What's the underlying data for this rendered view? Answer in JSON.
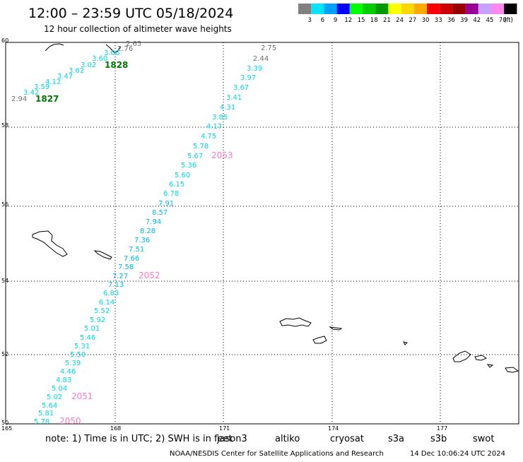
{
  "header": {
    "title": "12:00 – 23:59 UTC 05/18/2024",
    "subtitle": "12 hour collection of altimeter wave heights"
  },
  "legend": {
    "unit": "(ft)",
    "bins": [
      {
        "label": "3",
        "color": "#808080"
      },
      {
        "label": "6",
        "color": "#00e5ff"
      },
      {
        "label": "9",
        "color": "#00a0ff"
      },
      {
        "label": "12",
        "color": "#0000ff"
      },
      {
        "label": "15",
        "color": "#00ff00"
      },
      {
        "label": "18",
        "color": "#00cc00"
      },
      {
        "label": "21",
        "color": "#009900"
      },
      {
        "label": "24",
        "color": "#ffff00"
      },
      {
        "label": "27",
        "color": "#ffd700"
      },
      {
        "label": "30",
        "color": "#ffaa00"
      },
      {
        "label": "33",
        "color": "#ff0000"
      },
      {
        "label": "36",
        "color": "#cc0000"
      },
      {
        "label": "39",
        "color": "#990000"
      },
      {
        "label": "42",
        "color": "#990099"
      },
      {
        "label": "45",
        "color": "#c8a0ff"
      },
      {
        "label": "70",
        "color": "#ff88ee"
      },
      {
        "label": "",
        "color": "#000000"
      }
    ]
  },
  "axes": {
    "lat_labels": [
      "60",
      "58",
      "56",
      "54",
      "52",
      "50"
    ],
    "lon_labels": [
      "165",
      "168",
      "171",
      "174",
      "177"
    ]
  },
  "labels": [
    {
      "text": "2.76",
      "color": "#707070"
    },
    {
      "text": "2.65",
      "color": "#707070"
    },
    {
      "text": "3.06",
      "color": "#00d8e8"
    },
    {
      "text": "3.60",
      "color": "#00d8e8"
    },
    {
      "text": "3.02",
      "color": "#00d8e8"
    },
    {
      "text": "3.62",
      "color": "#00d8e8"
    },
    {
      "text": "3.47",
      "color": "#00d8e8"
    },
    {
      "text": "4.12",
      "color": "#00d8e8"
    },
    {
      "text": "3.59",
      "color": "#00d8e8"
    },
    {
      "text": "3.42",
      "color": "#00d8e8"
    },
    {
      "text": "2.94",
      "color": "#707070"
    },
    {
      "text": "2.75",
      "color": "#707070"
    },
    {
      "text": "2.44",
      "color": "#707070"
    },
    {
      "text": "3.39",
      "color": "#00d8e8"
    },
    {
      "text": "3.97",
      "color": "#00d8e8"
    },
    {
      "text": "3.67",
      "color": "#00d8e8"
    },
    {
      "text": "3.41",
      "color": "#00d8e8"
    },
    {
      "text": "4.31",
      "color": "#00d8e8"
    },
    {
      "text": "3.85",
      "color": "#00d8e8"
    },
    {
      "text": "4.17",
      "color": "#00d8e8"
    },
    {
      "text": "4.75",
      "color": "#00d8e8"
    },
    {
      "text": "5.78",
      "color": "#00d8e8"
    },
    {
      "text": "5.67",
      "color": "#00d8e8"
    },
    {
      "text": "5.36",
      "color": "#00d8e8"
    },
    {
      "text": "5.60",
      "color": "#00d8e8"
    },
    {
      "text": "6.15",
      "color": "#00d8e8"
    },
    {
      "text": "6.78",
      "color": "#00d8e8"
    },
    {
      "text": "7.91",
      "color": "#00b8f0"
    },
    {
      "text": "8.57",
      "color": "#00b8f0"
    },
    {
      "text": "7.94",
      "color": "#00b8f0"
    },
    {
      "text": "8.28",
      "color": "#00b8f0"
    },
    {
      "text": "7.36",
      "color": "#00b8f0"
    },
    {
      "text": "7.51",
      "color": "#00b8f0"
    },
    {
      "text": "7.66",
      "color": "#00b8f0"
    },
    {
      "text": "7.58",
      "color": "#00b8f0"
    },
    {
      "text": "7.27",
      "color": "#00b8f0"
    },
    {
      "text": "7.13",
      "color": "#00b8f0"
    },
    {
      "text": "6.83",
      "color": "#00d8e8"
    },
    {
      "text": "6.14",
      "color": "#00d8e8"
    },
    {
      "text": "5.52",
      "color": "#00d8e8"
    },
    {
      "text": "5.92",
      "color": "#00d8e8"
    },
    {
      "text": "5.01",
      "color": "#00d8e8"
    },
    {
      "text": "5.46",
      "color": "#00d8e8"
    },
    {
      "text": "5.31",
      "color": "#00d8e8"
    },
    {
      "text": "5.50",
      "color": "#00d8e8"
    },
    {
      "text": "5.39",
      "color": "#00d8e8"
    },
    {
      "text": "4.46",
      "color": "#00d8e8"
    },
    {
      "text": "4.83",
      "color": "#00d8e8"
    },
    {
      "text": "5.04",
      "color": "#00d8e8"
    },
    {
      "text": "5.02",
      "color": "#00d8e8"
    },
    {
      "text": "5.64",
      "color": "#00d8e8"
    },
    {
      "text": "5.81",
      "color": "#00d8e8"
    },
    {
      "text": "5.78",
      "color": "#00d8e8"
    }
  ],
  "hour_labels": [
    {
      "text": "1828",
      "color": "#007700"
    },
    {
      "text": "1827",
      "color": "#007700"
    },
    {
      "text": "2053",
      "color": "#ff77cc"
    },
    {
      "text": "2052",
      "color": "#ff77cc"
    },
    {
      "text": "2051",
      "color": "#ff77cc"
    },
    {
      "text": "2050",
      "color": "#ff77cc"
    }
  ],
  "footer": {
    "note": "note:  1) Time is in UTC;  2) SWH is in feet",
    "sats": [
      {
        "text": "jason3",
        "color": "#007700"
      },
      {
        "text": "altiko",
        "color": "#ff9900"
      },
      {
        "text": "cryosat",
        "color": "#ff0000"
      },
      {
        "text": "s3a",
        "color": "#990000"
      },
      {
        "text": "s3b",
        "color": "#c8a0ff"
      },
      {
        "text": "swot",
        "color": "#ff88ee"
      }
    ],
    "credit": "NOAA/NESDIS Center for Satellite Applications and Research",
    "timestamp": "14 Dec 10:06:24 UTC 2024"
  }
}
